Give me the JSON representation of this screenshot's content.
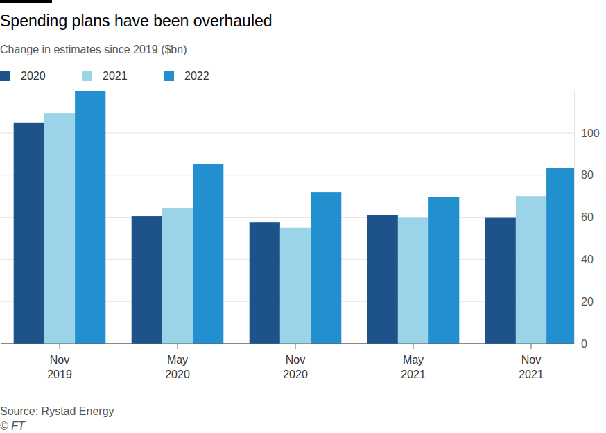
{
  "chart_data": {
    "type": "bar",
    "title": "Spending plans have been overhauled",
    "subtitle": "Change in estimates since 2019 ($bn)",
    "source": "Source: Rystad Energy",
    "credit": "© FT",
    "categories": [
      "Nov 2019",
      "May 2020",
      "Nov 2020",
      "May 2021",
      "Nov 2021"
    ],
    "series": [
      {
        "name": "2020",
        "color": "#1d528b",
        "values": [
          105,
          60.5,
          57.5,
          61,
          60
        ]
      },
      {
        "name": "2021",
        "color": "#9bd3e8",
        "values": [
          109.5,
          64.5,
          55,
          60,
          70
        ]
      },
      {
        "name": "2022",
        "color": "#228fcf",
        "values": [
          120,
          85.5,
          72,
          69.5,
          83.5
        ]
      }
    ],
    "ylim": [
      0,
      120
    ],
    "yticks": [
      0,
      20,
      40,
      60,
      80,
      100
    ],
    "grid": true,
    "legend": "top-left"
  }
}
